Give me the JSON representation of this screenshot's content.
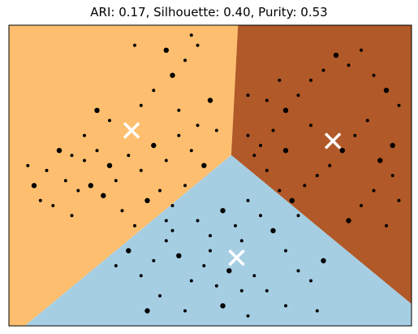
{
  "chart_data": {
    "type": "scatter",
    "title": "ARI: 0.17, Silhouette: 0.40, Purity: 0.53",
    "xlabel": "",
    "ylabel": "",
    "xlim": [
      -3.2,
      3.2
    ],
    "ylim": [
      -3.0,
      3.0
    ],
    "axis_ticks": "none",
    "grid": false,
    "region_colors": {
      "upper-left": "#fdbf6f",
      "right": "#b15928",
      "bottom": "#a6cee3"
    },
    "point_color": "#000000",
    "centroid_color": "#ffffff",
    "centroids": [
      {
        "x": -1.25,
        "y": 0.9
      },
      {
        "x": 1.95,
        "y": 0.69
      },
      {
        "x": 0.42,
        "y": -1.64
      }
    ],
    "points": [
      [
        -2.4,
        0.5
      ],
      [
        -2.2,
        0.4
      ],
      [
        -2.0,
        0.3
      ],
      [
        -1.8,
        0.5
      ],
      [
        -1.6,
        0.2
      ],
      [
        -2.6,
        0.1
      ],
      [
        -2.3,
        -0.1
      ],
      [
        -2.1,
        -0.3
      ],
      [
        -1.9,
        -0.2
      ],
      [
        -2.7,
        -0.5
      ],
      [
        -2.5,
        -0.6
      ],
      [
        -2.2,
        -0.8
      ],
      [
        -1.7,
        -0.4
      ],
      [
        -1.5,
        -0.1
      ],
      [
        -1.3,
        0.4
      ],
      [
        -1.1,
        0.1
      ],
      [
        -0.9,
        0.6
      ],
      [
        -0.7,
        0.3
      ],
      [
        -0.5,
        0.8
      ],
      [
        -0.3,
        0.5
      ],
      [
        -0.1,
        0.2
      ],
      [
        -0.8,
        -0.3
      ],
      [
        -0.6,
        -0.6
      ],
      [
        -0.4,
        -0.2
      ],
      [
        -1.0,
        -0.5
      ],
      [
        -1.4,
        -0.7
      ],
      [
        -1.2,
        -1.0
      ],
      [
        -0.2,
        1.0
      ],
      [
        0.0,
        1.5
      ],
      [
        0.1,
        0.9
      ],
      [
        -1.1,
        1.4
      ],
      [
        -0.9,
        1.7
      ],
      [
        -0.6,
        2.0
      ],
      [
        -0.4,
        2.3
      ],
      [
        -0.2,
        2.6
      ],
      [
        -1.2,
        2.6
      ],
      [
        -0.7,
        2.5
      ],
      [
        -0.3,
        2.8
      ],
      [
        -0.5,
        1.3
      ],
      [
        -1.6,
        1.1
      ],
      [
        -1.8,
        1.3
      ],
      [
        -2.0,
        0.8
      ],
      [
        -0.7,
        -0.9
      ],
      [
        -2.9,
        0.2
      ],
      [
        -2.8,
        -0.2
      ],
      [
        0.6,
        0.8
      ],
      [
        0.8,
        0.6
      ],
      [
        1.0,
        0.9
      ],
      [
        1.2,
        1.3
      ],
      [
        1.4,
        1.6
      ],
      [
        1.6,
        1.9
      ],
      [
        1.8,
        2.1
      ],
      [
        2.0,
        2.4
      ],
      [
        2.2,
        2.2
      ],
      [
        2.4,
        2.5
      ],
      [
        2.6,
        2.0
      ],
      [
        2.8,
        1.7
      ],
      [
        3.0,
        1.4
      ],
      [
        2.5,
        1.1
      ],
      [
        2.3,
        0.8
      ],
      [
        2.1,
        0.5
      ],
      [
        1.9,
        0.2
      ],
      [
        1.7,
        0.0
      ],
      [
        1.5,
        -0.2
      ],
      [
        1.3,
        -0.5
      ],
      [
        1.1,
        -0.3
      ],
      [
        0.9,
        0.1
      ],
      [
        0.7,
        0.4
      ],
      [
        2.7,
        0.3
      ],
      [
        2.9,
        0.0
      ],
      [
        2.6,
        -0.3
      ],
      [
        2.4,
        -0.6
      ],
      [
        2.2,
        -0.9
      ],
      [
        2.8,
        -1.0
      ],
      [
        3.0,
        -0.5
      ],
      [
        1.6,
        1.0
      ],
      [
        1.2,
        0.5
      ],
      [
        0.9,
        1.5
      ],
      [
        1.1,
        1.9
      ],
      [
        0.6,
        1.6
      ],
      [
        2.9,
        0.6
      ],
      [
        1.4,
        -0.8
      ],
      [
        -0.2,
        -0.9
      ],
      [
        0.0,
        -1.2
      ],
      [
        0.2,
        -0.7
      ],
      [
        0.4,
        -1.0
      ],
      [
        0.6,
        -0.5
      ],
      [
        0.8,
        -0.8
      ],
      [
        1.0,
        -1.1
      ],
      [
        1.2,
        -1.5
      ],
      [
        1.4,
        -1.9
      ],
      [
        1.6,
        -2.1
      ],
      [
        1.8,
        -1.7
      ],
      [
        0.9,
        -2.3
      ],
      [
        0.7,
        -2.0
      ],
      [
        0.5,
        -2.3
      ],
      [
        0.3,
        -1.9
      ],
      [
        0.1,
        -2.2
      ],
      [
        -0.1,
        -1.8
      ],
      [
        -0.3,
        -2.1
      ],
      [
        -0.5,
        -1.6
      ],
      [
        -0.7,
        -1.3
      ],
      [
        -0.9,
        -1.7
      ],
      [
        -1.1,
        -2.0
      ],
      [
        -1.3,
        -1.5
      ],
      [
        -1.5,
        -1.8
      ],
      [
        -0.8,
        -2.4
      ],
      [
        -0.4,
        -2.7
      ],
      [
        0.2,
        -2.6
      ],
      [
        0.6,
        -2.8
      ],
      [
        1.2,
        -2.6
      ],
      [
        1.7,
        -2.7
      ],
      [
        -1.0,
        -2.7
      ],
      [
        0.0,
        -1.5
      ],
      [
        0.5,
        -1.3
      ],
      [
        -0.6,
        -1.1
      ]
    ]
  }
}
